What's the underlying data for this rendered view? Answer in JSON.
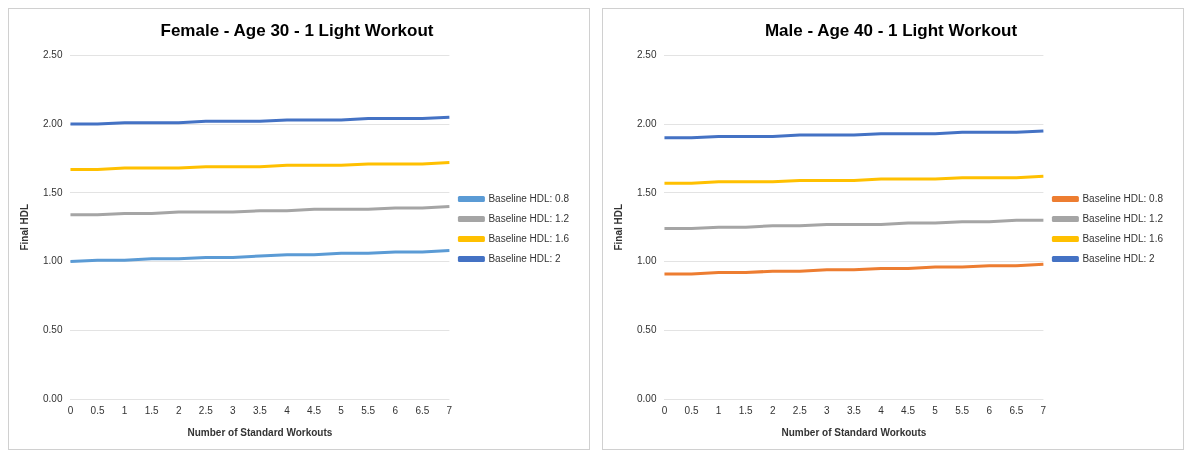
{
  "chart_data": [
    {
      "type": "line",
      "title": "Female - Age 30 - 1 Light Workout",
      "xlabel": "Number of Standard Workouts",
      "ylabel": "Final HDL",
      "categories": [
        "0",
        "0.5",
        "1",
        "1.5",
        "2",
        "2.5",
        "3",
        "3.5",
        "4",
        "4.5",
        "5",
        "5.5",
        "6",
        "6.5",
        "7"
      ],
      "series": [
        {
          "name": "Baseline HDL: 0.8",
          "color": "#5b9bd5",
          "values": [
            1.0,
            1.01,
            1.01,
            1.02,
            1.02,
            1.03,
            1.03,
            1.04,
            1.05,
            1.05,
            1.06,
            1.06,
            1.07,
            1.07,
            1.08
          ]
        },
        {
          "name": "Baseline HDL: 1.2",
          "color": "#a5a5a5",
          "values": [
            1.34,
            1.34,
            1.35,
            1.35,
            1.36,
            1.36,
            1.36,
            1.37,
            1.37,
            1.38,
            1.38,
            1.38,
            1.39,
            1.39,
            1.4
          ]
        },
        {
          "name": "Baseline HDL: 1.6",
          "color": "#ffc000",
          "values": [
            1.67,
            1.67,
            1.68,
            1.68,
            1.68,
            1.69,
            1.69,
            1.69,
            1.7,
            1.7,
            1.7,
            1.71,
            1.71,
            1.71,
            1.72
          ]
        },
        {
          "name": "Baseline HDL: 2",
          "color": "#4472c4",
          "values": [
            2.0,
            2.0,
            2.01,
            2.01,
            2.01,
            2.02,
            2.02,
            2.02,
            2.03,
            2.03,
            2.03,
            2.04,
            2.04,
            2.04,
            2.05
          ]
        }
      ],
      "ylim": [
        0,
        2.5
      ],
      "yticks": [
        {
          "value": 0,
          "label": "0.00"
        },
        {
          "value": 0.5,
          "label": "0.50"
        },
        {
          "value": 1,
          "label": "1.00"
        },
        {
          "value": 1.5,
          "label": "1.50"
        },
        {
          "value": 2,
          "label": "2.00"
        },
        {
          "value": 2.5,
          "label": "2.50"
        }
      ],
      "grid": "y",
      "legend": "right",
      "marker": "none",
      "line_style": "solid"
    },
    {
      "type": "line",
      "title": "Male - Age 40 - 1 Light Workout",
      "xlabel": "Number of Standard Workouts",
      "ylabel": "Final HDL",
      "categories": [
        "0",
        "0.5",
        "1",
        "1.5",
        "2",
        "2.5",
        "3",
        "3.5",
        "4",
        "4.5",
        "5",
        "5.5",
        "6",
        "6.5",
        "7"
      ],
      "series": [
        {
          "name": "Baseline HDL: 0.8",
          "color": "#ed7d31",
          "values": [
            0.91,
            0.91,
            0.92,
            0.92,
            0.93,
            0.93,
            0.94,
            0.94,
            0.95,
            0.95,
            0.96,
            0.96,
            0.97,
            0.97,
            0.98
          ]
        },
        {
          "name": "Baseline HDL: 1.2",
          "color": "#a5a5a5",
          "values": [
            1.24,
            1.24,
            1.25,
            1.25,
            1.26,
            1.26,
            1.27,
            1.27,
            1.27,
            1.28,
            1.28,
            1.29,
            1.29,
            1.3,
            1.3
          ]
        },
        {
          "name": "Baseline HDL: 1.6",
          "color": "#ffc000",
          "values": [
            1.57,
            1.57,
            1.58,
            1.58,
            1.58,
            1.59,
            1.59,
            1.59,
            1.6,
            1.6,
            1.6,
            1.61,
            1.61,
            1.61,
            1.62
          ]
        },
        {
          "name": "Baseline HDL: 2",
          "color": "#4472c4",
          "values": [
            1.9,
            1.9,
            1.91,
            1.91,
            1.91,
            1.92,
            1.92,
            1.92,
            1.93,
            1.93,
            1.93,
            1.94,
            1.94,
            1.94,
            1.95
          ]
        }
      ],
      "ylim": [
        0,
        2.5
      ],
      "yticks": [
        {
          "value": 0,
          "label": "0.00"
        },
        {
          "value": 0.5,
          "label": "0.50"
        },
        {
          "value": 1,
          "label": "1.00"
        },
        {
          "value": 1.5,
          "label": "1.50"
        },
        {
          "value": 2,
          "label": "2.00"
        },
        {
          "value": 2.5,
          "label": "2.50"
        }
      ],
      "grid": "y",
      "legend": "right",
      "marker": "none",
      "line_style": "solid"
    }
  ]
}
